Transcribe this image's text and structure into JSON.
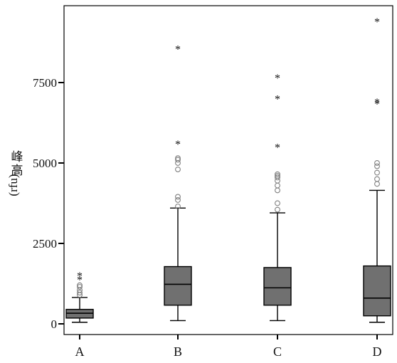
{
  "chart_data": {
    "type": "boxplot",
    "title": "",
    "xlabel": "",
    "ylabel": "峰高 (rfu)",
    "ylabel_parts": {
      "chinese": "峰高",
      "unit": "(rfu)"
    },
    "ylim": [
      -200,
      9800
    ],
    "yticks": [
      0,
      2500,
      5000,
      7500
    ],
    "ytick_labels": [
      "0",
      "2500",
      "5000",
      "7500"
    ],
    "grid": false,
    "categories": [
      "A",
      "B",
      "C",
      "D"
    ],
    "box_color": "#707070",
    "outlier_color": "#808080",
    "boxes": [
      {
        "category": "A",
        "whisker_low": 50,
        "q1": 180,
        "median": 330,
        "q3": 450,
        "whisker_high": 820,
        "outliers_circle": [
          900,
          970,
          1050,
          1150,
          1200
        ],
        "outliers_star": [
          1380,
          1500
        ]
      },
      {
        "category": "B",
        "whisker_low": 100,
        "q1": 580,
        "median": 1230,
        "q3": 1780,
        "whisker_high": 3600,
        "outliers_circle": [
          3650,
          3850,
          3950,
          4800,
          5000,
          5100,
          5150
        ],
        "outliers_star": [
          5600,
          8550
        ]
      },
      {
        "category": "C",
        "whisker_low": 100,
        "q1": 580,
        "median": 1120,
        "q3": 1750,
        "whisker_high": 3450,
        "outliers_circle": [
          3550,
          3750,
          4150,
          4300,
          4450,
          4550,
          4600,
          4650
        ],
        "outliers_star": [
          5500,
          7000,
          7650
        ]
      },
      {
        "category": "D",
        "whisker_low": 50,
        "q1": 250,
        "median": 800,
        "q3": 1800,
        "whisker_high": 4150,
        "outliers_circle": [
          4350,
          4500,
          4700,
          4900,
          5000
        ],
        "outliers_star": [
          6850,
          6900,
          9400
        ]
      }
    ]
  }
}
